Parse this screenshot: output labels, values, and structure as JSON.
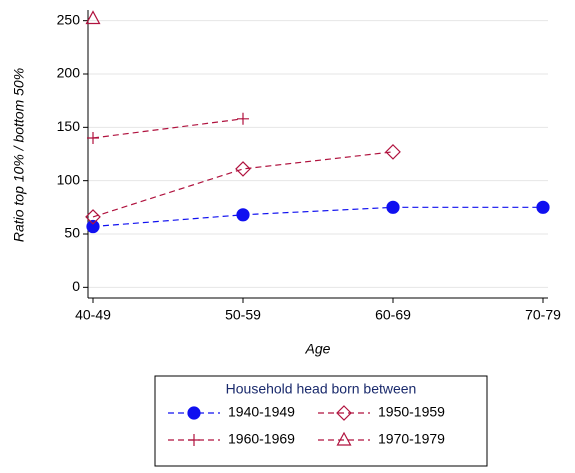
{
  "chart_data": {
    "type": "line",
    "x_label": "Age",
    "y_label": "Ratio top 10% / bottom 50%",
    "categories": [
      "40-49",
      "50-59",
      "60-69",
      "70-79"
    ],
    "ylim": [
      -10,
      260
    ],
    "yticks": [
      0,
      50,
      100,
      150,
      200,
      250
    ],
    "grid": true,
    "legend_title": "Household head born between",
    "series": [
      {
        "name": "1940-1949",
        "color": "#1010f0",
        "marker": "circle",
        "values": [
          57,
          68,
          75,
          75
        ]
      },
      {
        "name": "1950-1959",
        "color": "#b0123e",
        "marker": "diamond",
        "values": [
          66,
          111,
          127,
          null
        ]
      },
      {
        "name": "1960-1969",
        "color": "#b0123e",
        "marker": "plus",
        "values": [
          140,
          158,
          null,
          null
        ]
      },
      {
        "name": "1970-1979",
        "color": "#b0123e",
        "marker": "triangle",
        "values": [
          252,
          null,
          null,
          null
        ]
      }
    ]
  }
}
